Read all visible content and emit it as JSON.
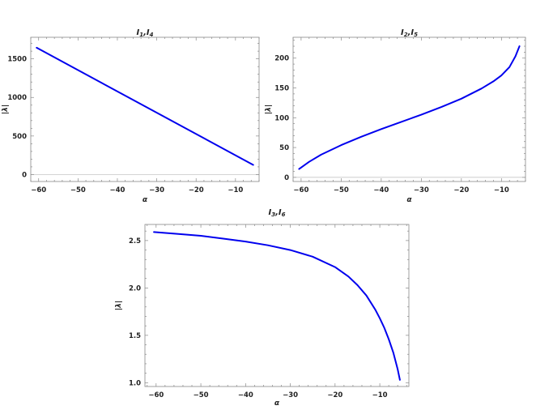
{
  "chart_data": [
    {
      "type": "line",
      "title": "I1,I4",
      "title_parts": [
        "I",
        "1",
        ",I",
        "4"
      ],
      "xlabel": "α",
      "ylabel": "|λ|",
      "xlim": [
        -62,
        -4
      ],
      "ylim": [
        -90,
        1780
      ],
      "xticks": [
        -60,
        -50,
        -40,
        -30,
        -20,
        -10
      ],
      "yticks": [
        0,
        500,
        1000,
        1500
      ],
      "grid": false,
      "zero_line": true,
      "color": "#0000ee",
      "series": [
        {
          "x": [
            -60.5,
            -5.5
          ],
          "y": [
            1645,
            125
          ]
        }
      ]
    },
    {
      "type": "line",
      "title": "I2,I5",
      "title_parts": [
        "I",
        "2",
        ",I",
        "5"
      ],
      "xlabel": "α",
      "ylabel": "|λ|",
      "xlim": [
        -62,
        -4
      ],
      "ylim": [
        -7,
        235
      ],
      "xticks": [
        -60,
        -50,
        -40,
        -30,
        -20,
        -10
      ],
      "yticks": [
        0,
        50,
        100,
        150,
        200
      ],
      "grid": false,
      "zero_line": true,
      "color": "#0000ee",
      "series": [
        {
          "x": [
            -60.5,
            -58,
            -55,
            -50,
            -45,
            -40,
            -35,
            -30,
            -25,
            -20,
            -15,
            -12,
            -10,
            -8,
            -6.5,
            -5.5
          ],
          "y": [
            14,
            26,
            38,
            54,
            68,
            81,
            93,
            105,
            118,
            132,
            149,
            161,
            171,
            185,
            203,
            220
          ]
        }
      ]
    },
    {
      "type": "line",
      "title": "I3,I6",
      "title_parts": [
        "I",
        "3",
        ",I",
        "6"
      ],
      "xlabel": "α",
      "ylabel": "|λ|",
      "xlim": [
        -62.5,
        -3.5
      ],
      "ylim": [
        0.96,
        2.67
      ],
      "xticks": [
        -60,
        -50,
        -40,
        -30,
        -20,
        -10
      ],
      "yticks": [
        1.0,
        1.5,
        2.0,
        2.5
      ],
      "ytick_labels": [
        "1.0",
        "1.5",
        "2.0",
        "2.5"
      ],
      "grid": false,
      "zero_line": false,
      "color": "#0000ee",
      "series": [
        {
          "x": [
            -60.5,
            -55,
            -50,
            -45,
            -40,
            -35,
            -30,
            -25,
            -20,
            -17,
            -15,
            -13,
            -11,
            -10,
            -9,
            -8,
            -7,
            -6,
            -5.5
          ],
          "y": [
            2.59,
            2.57,
            2.55,
            2.52,
            2.49,
            2.45,
            2.4,
            2.33,
            2.22,
            2.12,
            2.03,
            1.92,
            1.77,
            1.68,
            1.58,
            1.46,
            1.32,
            1.14,
            1.03
          ]
        }
      ]
    }
  ]
}
